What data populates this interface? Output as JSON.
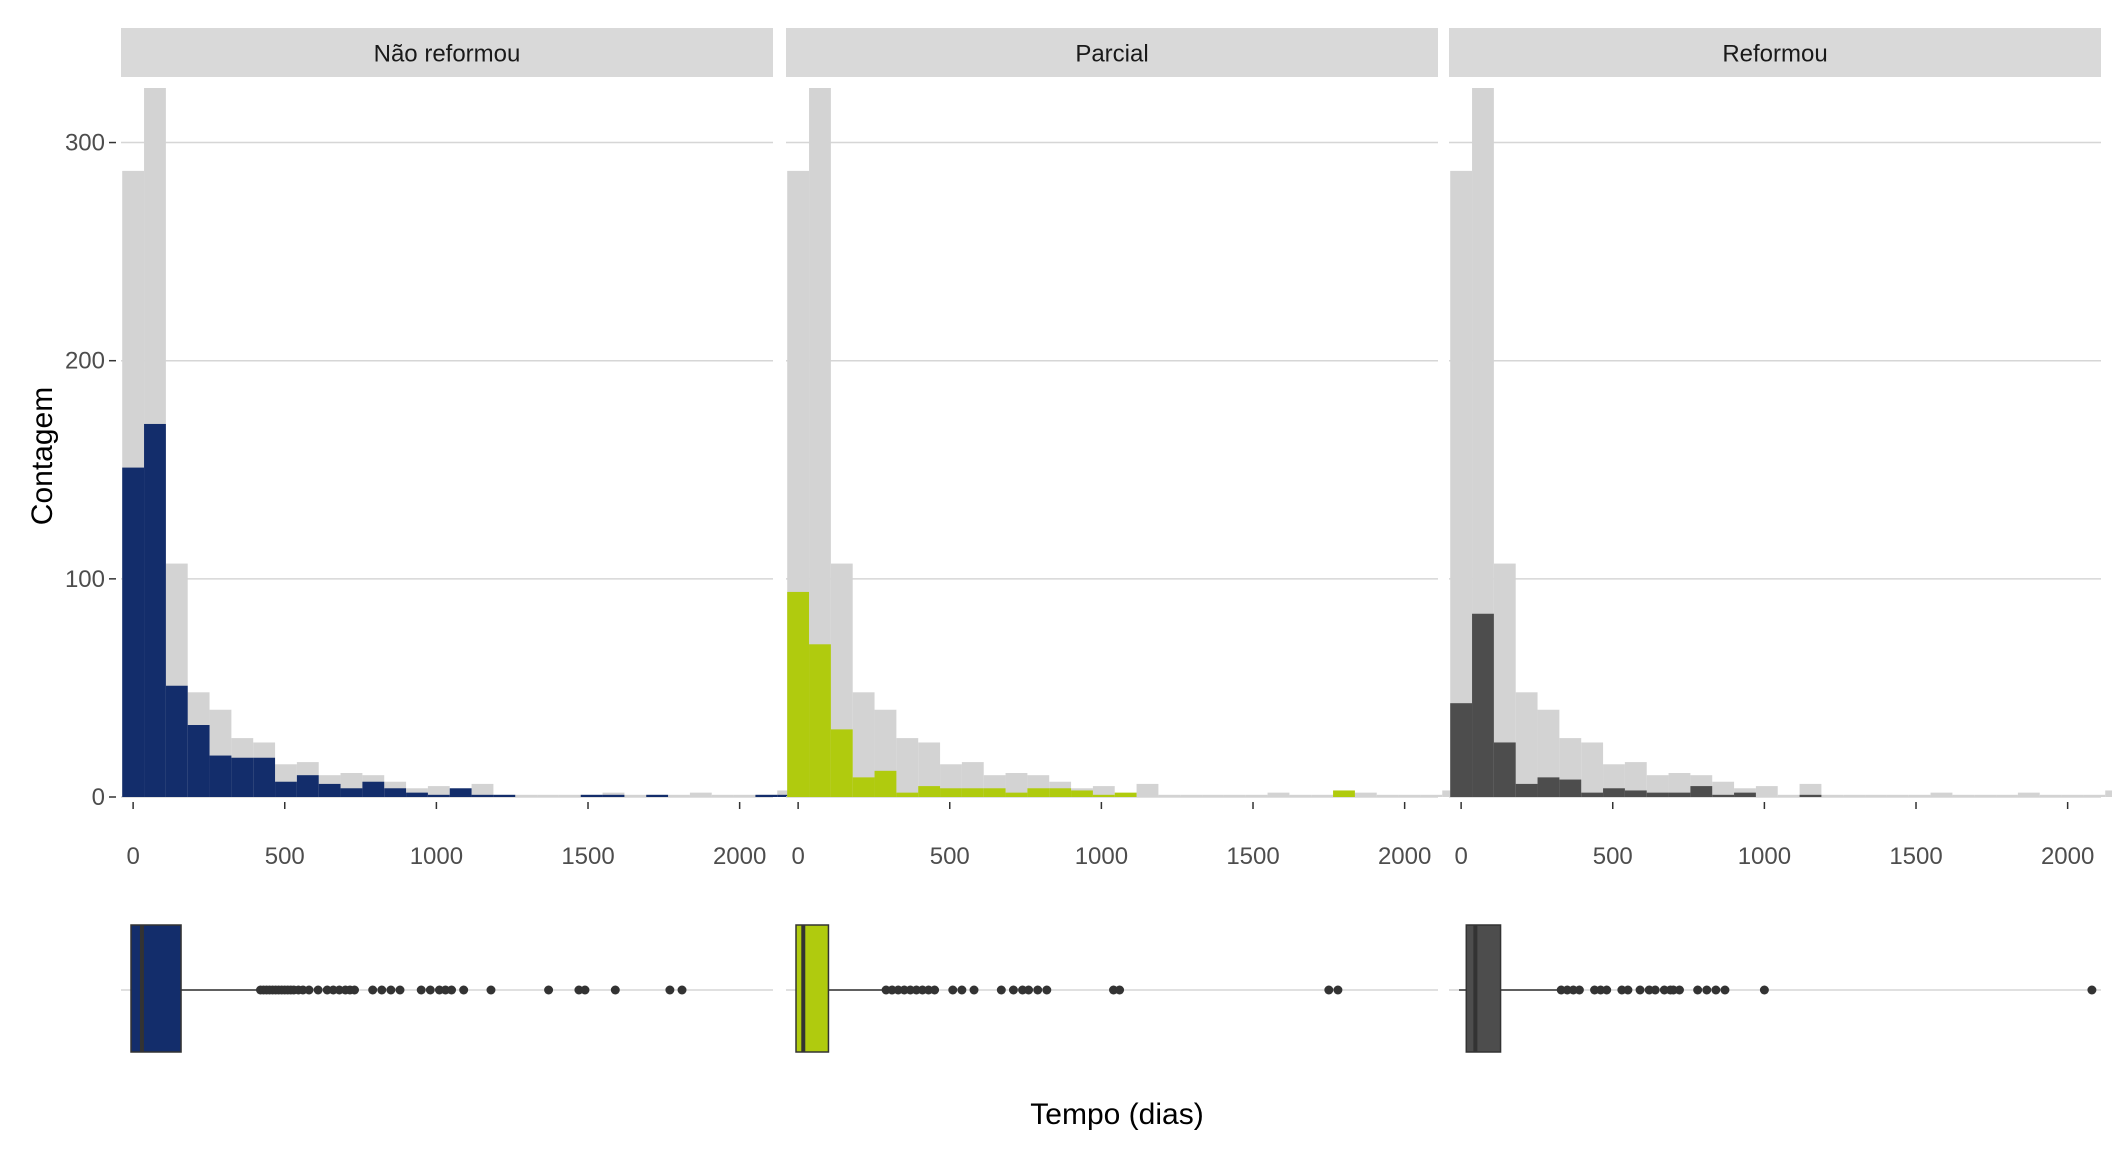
{
  "chart_data": {
    "type": "histogram-with-boxplot",
    "xlabel": "Tempo (dias)",
    "ylabel": "Contagem",
    "xlim": [
      -40,
      2110
    ],
    "ylim": [
      0,
      325
    ],
    "x_ticks": [
      0,
      500,
      1000,
      1500,
      2000
    ],
    "y_ticks": [
      0,
      100,
      200,
      300
    ],
    "grid": true,
    "bin_start": -36,
    "bin_width": 72,
    "background_color": "#d3d3d3",
    "background_counts": [
      287,
      325,
      107,
      48,
      40,
      27,
      25,
      15,
      16,
      10,
      11,
      10,
      7,
      4,
      5,
      1,
      6,
      1,
      1,
      1,
      1,
      1,
      2,
      1,
      1,
      1,
      2,
      1,
      1,
      1,
      3,
      1,
      0,
      0,
      0,
      1
    ],
    "panels": [
      {
        "title": "Não reformou",
        "color": "#132d6b",
        "counts": [
          151,
          171,
          51,
          33,
          19,
          18,
          18,
          7,
          10,
          6,
          4,
          7,
          4,
          2,
          1,
          4,
          1,
          1,
          0,
          0,
          0,
          1,
          1,
          0,
          1,
          0,
          0,
          0,
          0,
          1,
          1,
          0,
          0,
          0,
          0,
          0
        ],
        "boxplot": {
          "min": -7,
          "q1": -7,
          "median": 29,
          "q3": 158,
          "whisker_low": -7,
          "whisker_high": 410,
          "outliers": [
            420,
            430,
            440,
            450,
            460,
            470,
            480,
            490,
            500,
            510,
            520,
            530,
            545,
            560,
            580,
            610,
            640,
            660,
            680,
            700,
            715,
            730,
            790,
            820,
            850,
            880,
            950,
            980,
            1010,
            1030,
            1050,
            1090,
            1180,
            1370,
            1470,
            1490,
            1590,
            1770,
            1810
          ]
        }
      },
      {
        "title": "Parcial",
        "color": "#b0cb0e",
        "counts": [
          94,
          70,
          31,
          9,
          12,
          2,
          5,
          4,
          4,
          4,
          2,
          4,
          4,
          3,
          1,
          2,
          0,
          0,
          0,
          0,
          0,
          0,
          0,
          0,
          0,
          3,
          0,
          0,
          0,
          0,
          0,
          0,
          0,
          0,
          0,
          0
        ],
        "boxplot": {
          "min": -7,
          "q1": -7,
          "median": 17,
          "q3": 100,
          "whisker_low": -7,
          "whisker_high": 280,
          "outliers": [
            290,
            310,
            330,
            350,
            370,
            390,
            410,
            430,
            450,
            510,
            540,
            580,
            670,
            710,
            740,
            760,
            790,
            820,
            1040,
            1060,
            1750,
            1780
          ]
        }
      },
      {
        "title": "Reformou",
        "color": "#4d4d4d",
        "counts": [
          43,
          84,
          25,
          6,
          9,
          8,
          2,
          4,
          3,
          2,
          2,
          5,
          1,
          2,
          0,
          0,
          1,
          0,
          0,
          0,
          0,
          0,
          0,
          0,
          0,
          0,
          0,
          0,
          0,
          0,
          0,
          0,
          0,
          0,
          0,
          1
        ],
        "boxplot": {
          "min": -7,
          "q1": 17,
          "median": 47,
          "q3": 130,
          "whisker_low": -7,
          "whisker_high": 320,
          "outliers": [
            330,
            350,
            370,
            390,
            440,
            460,
            480,
            530,
            550,
            590,
            620,
            640,
            670,
            690,
            700,
            720,
            780,
            810,
            840,
            870,
            1000,
            2080
          ]
        }
      }
    ]
  }
}
